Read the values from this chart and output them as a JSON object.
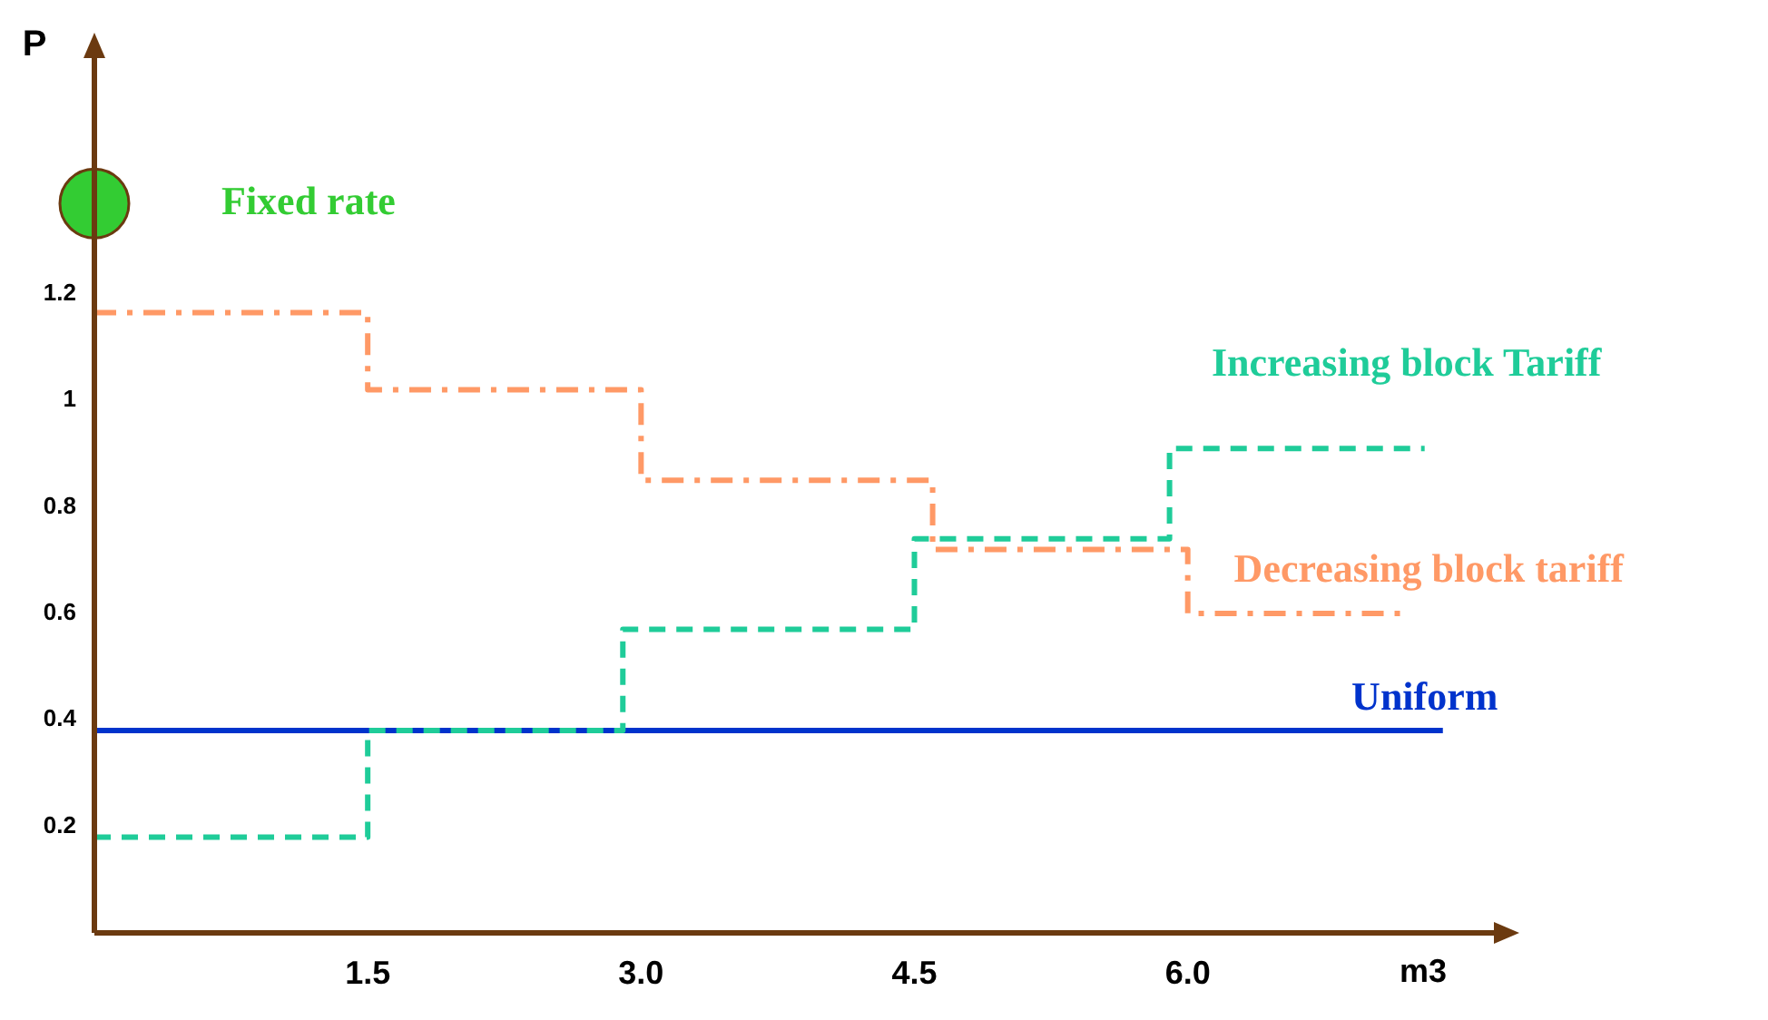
{
  "chart_data": {
    "type": "step",
    "xlabel": "m3",
    "ylabel": "P",
    "xlim": [
      0,
      7.7
    ],
    "ylim": [
      0,
      1.65
    ],
    "xticks": [
      {
        "value": 1.5,
        "label": "1.5"
      },
      {
        "value": 3,
        "label": "3.0"
      },
      {
        "value": 4.5,
        "label": "4.5"
      },
      {
        "value": 6,
        "label": "6.0"
      }
    ],
    "yticks": [
      0.2,
      0.4,
      0.6,
      0.8,
      1,
      1.2
    ],
    "grid": false,
    "legend": false,
    "series": [
      {
        "name": "Fixed rate",
        "type": "scatter",
        "marker": "circle",
        "color": "#33cc33",
        "x": [
          0
        ],
        "values": [
          1.37
        ]
      },
      {
        "name": "Increasing block Tariff",
        "line_style": "dashed",
        "color": "#1fcc99",
        "x": [
          0,
          1.5,
          2.9,
          4.5,
          5.9,
          7.3
        ],
        "values": [
          0.18,
          0.38,
          0.57,
          0.74,
          0.91,
          0.91
        ]
      },
      {
        "name": "Decreasing block tariff",
        "line_style": "dashed",
        "color": "#ff9966",
        "x": [
          0,
          1.5,
          3.0,
          4.6,
          6.0,
          7.2
        ],
        "values": [
          1.165,
          1.02,
          0.85,
          0.72,
          0.6,
          0.6
        ]
      },
      {
        "name": "Uniform",
        "type": "line",
        "line_style": "solid",
        "color": "#0033cc",
        "x": [
          0,
          7.4
        ],
        "values": [
          0.38,
          0.38
        ]
      }
    ]
  }
}
